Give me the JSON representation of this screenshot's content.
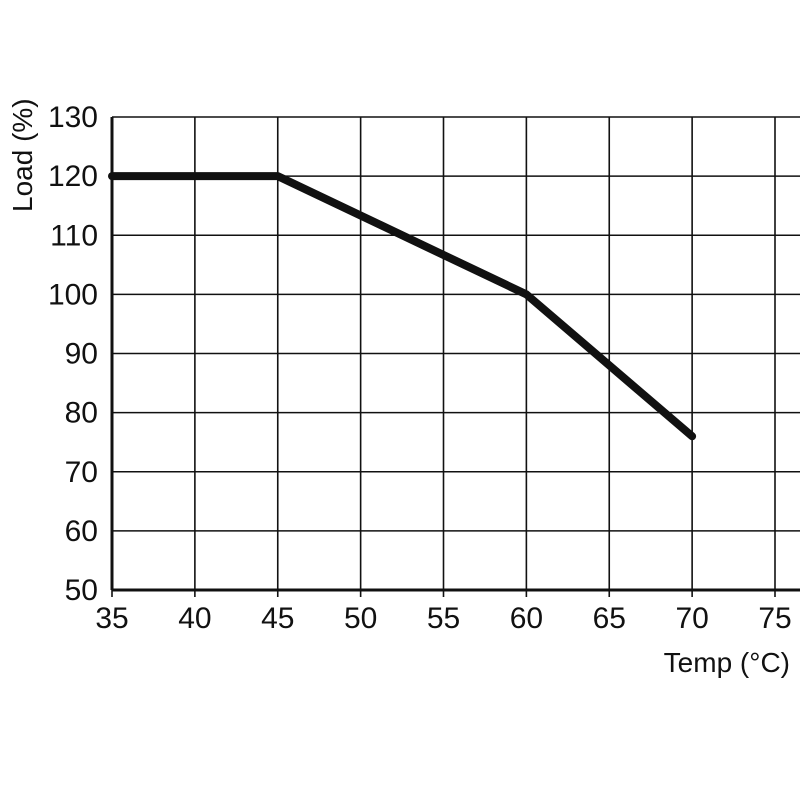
{
  "chart_data": {
    "type": "line",
    "title": "",
    "xlabel": "Temp (°C)",
    "ylabel": "Load (%)",
    "x": [
      35,
      45,
      60,
      70
    ],
    "y": [
      120,
      120,
      100,
      76
    ],
    "xlim": [
      35,
      75
    ],
    "ylim": [
      50,
      130
    ],
    "x_ticks": [
      35,
      40,
      45,
      50,
      55,
      60,
      65,
      70,
      75
    ],
    "y_ticks": [
      50,
      60,
      70,
      80,
      90,
      100,
      110,
      120,
      130
    ],
    "grid": true,
    "legend": "none",
    "line_color": "#111111",
    "grid_color": "#111111",
    "axis_color": "#111111",
    "background": "#ffffff",
    "line_width": 8
  }
}
